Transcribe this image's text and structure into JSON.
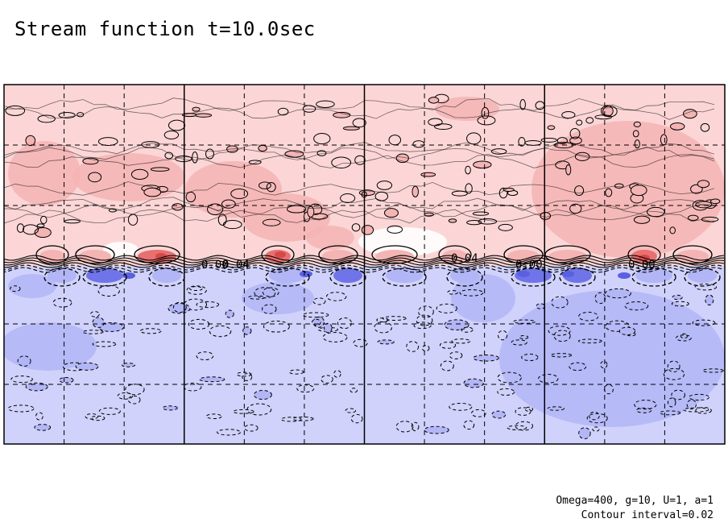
{
  "title": "Stream function t=10.0sec",
  "annotation": {
    "params": "Omega=400, g=10, U=1, a=1",
    "interval": "Contour interval=0.02"
  },
  "chart_data": {
    "type": "heatmap",
    "title": "Stream function t=10.0sec",
    "time": "t=10.0sec",
    "contour_interval": 0.02,
    "contour_labels": [
      "0.00",
      "0.04",
      "0.04",
      "0.00",
      "0.00"
    ],
    "positive_color": "#f2a0a0",
    "negative_color": "#a0a8f2",
    "grid": true,
    "major_columns": 4,
    "minor_divisions": 3,
    "major_rows": 2,
    "regions": [
      "upper half positive (red shades)",
      "lower half negative (blue shades)"
    ]
  },
  "colors": {
    "pos_light": "#fcd6d6",
    "pos_mid": "#f4b4b4",
    "pos_strong": "#e87070",
    "neg_light": "#d0d2fb",
    "neg_mid": "#b2b6f6",
    "neg_strong": "#6f74e8",
    "frame": "#000000"
  }
}
